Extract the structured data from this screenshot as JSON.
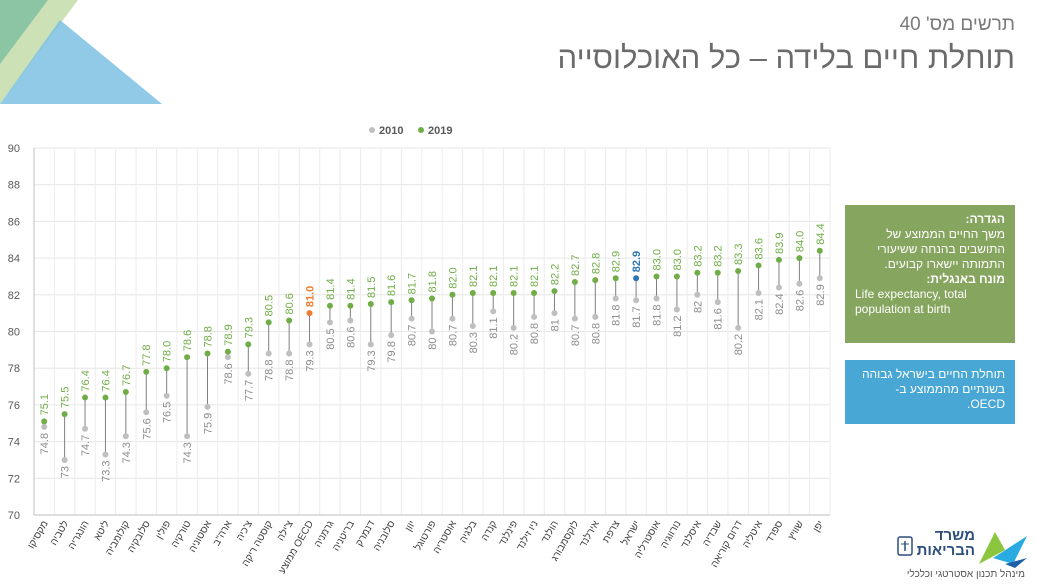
{
  "slide": {
    "subtitle": "תרשים מס' 40",
    "title": "תוחלת חיים בלידה – כל האוכלוסייה"
  },
  "colors": {
    "series_2010": "#bfbfbf",
    "series_2019": "#70ad47",
    "highlight_oecd": "#ed7d31",
    "highlight_israel": "#2e75b6",
    "definition_box": "#86a55f",
    "note_box": "#48a7d4"
  },
  "chart_data": {
    "type": "dumbbell",
    "ylim": [
      70,
      90
    ],
    "yticks": [
      70,
      72,
      74,
      76,
      78,
      80,
      82,
      84,
      86,
      88,
      90
    ],
    "grid": true,
    "legend_position": "top-center",
    "series": [
      {
        "name": "2010",
        "values": [
          74.8,
          73,
          74.7,
          73.3,
          74.3,
          75.6,
          76.5,
          74.3,
          75.9,
          78.6,
          77.7,
          78.8,
          78.8,
          79.3,
          80.5,
          80.6,
          79.3,
          79.8,
          80.7,
          80,
          80.7,
          80.3,
          81.1,
          80.2,
          80.8,
          81,
          80.7,
          80.8,
          81.8,
          81.7,
          81.8,
          81.2,
          82,
          81.6,
          80.2,
          82.1,
          82.4,
          82.6,
          82.9
        ]
      },
      {
        "name": "2019",
        "values": [
          75.1,
          75.5,
          76.4,
          76.4,
          76.7,
          77.8,
          78.0,
          78.6,
          78.8,
          78.9,
          79.3,
          80.5,
          80.6,
          81.0,
          81.4,
          81.4,
          81.5,
          81.6,
          81.7,
          81.8,
          82.0,
          82.1,
          82.1,
          82.1,
          82.1,
          82.2,
          82.7,
          82.8,
          82.9,
          82.9,
          83.0,
          83.0,
          83.2,
          83.2,
          83.3,
          83.6,
          83.9,
          84.0,
          84.4
        ]
      }
    ],
    "labels_2010": [
      "74.8",
      "73",
      "74.7",
      "73.3",
      "74.3",
      "75.6",
      "76.5",
      "74.3",
      "75.9",
      "78.6",
      "77.7",
      "78.8",
      "78.8",
      "79.3",
      "80.5",
      "80.6",
      "79.3",
      "79.8",
      "80.7",
      "80",
      "80.7",
      "80.3",
      "81.1",
      "80.2",
      "80.8",
      "81",
      "80.7",
      "80.8",
      "81.8",
      "81.7",
      "81.8",
      "81.2",
      "82",
      "81.6",
      "80.2",
      "82.1",
      "82.4",
      "82.6",
      "82.9"
    ],
    "labels_2019": [
      "75.1",
      "75.5",
      "76.4",
      "76.4",
      "76.7",
      "77.8",
      "78.0",
      "78.6",
      "78.8",
      "78.9",
      "79.3",
      "80.5",
      "80.6",
      "81.0",
      "81.4",
      "81.4",
      "81.5",
      "81.6",
      "81.7",
      "81.8",
      "82.0",
      "82.1",
      "82.1",
      "82.1",
      "82.1",
      "82.2",
      "82.7",
      "82.8",
      "82.9",
      "82.9",
      "83.0",
      "83.0",
      "83.2",
      "83.2",
      "83.3",
      "83.6",
      "83.9",
      "84.0",
      "84.4"
    ],
    "categories": [
      "מקסיקו",
      "לטביה",
      "הונגריה",
      "ליטא",
      "קולומביה",
      "סלובקיה",
      "פולין",
      "טורקיה",
      "אסטוניה",
      "ארה\"ב",
      "צ'כיה",
      "קוסטה ריקה",
      "צ'ילה",
      "ממוצע OECD",
      "גרמניה",
      "בריטניה",
      "דנמרק",
      "סלובניה",
      "יוון",
      "פורטוגל",
      "אוסטריה",
      "בלגיה",
      "קנדה",
      "פינלנד",
      "ניו זילנד",
      "הולנד",
      "לוקסמבורג",
      "אירלנד",
      "צרפת",
      "ישראל",
      "אוסטרליה",
      "נורווגיה",
      "איסלנד",
      "שבדיה",
      "דרום קוריאה",
      "איטליה",
      "ספרד",
      "שוויץ",
      "יפן"
    ],
    "highlight": {
      "oecd_index": 13,
      "israel_index": 29
    }
  },
  "definition_box": {
    "heading": "הגדרה:",
    "text": "משך החיים הממוצע של התושבים בהנחה ששיעורי התמותה יישארו קבועים.",
    "english_heading": "מונח באנגלית:",
    "english_text": "Life expectancy, total population at birth"
  },
  "note_box": {
    "text": "תוחלת החיים בישראל גבוהה בשנתיים מהממוצע ב- OECD."
  },
  "logo": {
    "name_line1": "משרד",
    "name_line2": "הבריאות",
    "department": "מינהל תכנון אסטרטגי וכלכלי"
  }
}
